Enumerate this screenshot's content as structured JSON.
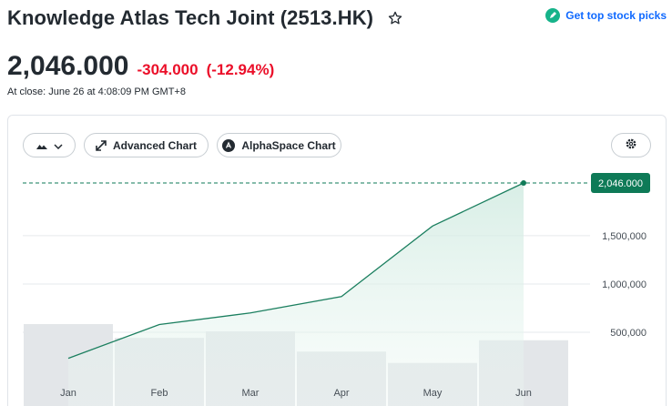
{
  "header": {
    "title": "Knowledge Atlas Tech Joint (2513.HK)",
    "top_picks_label": "Get top stock picks"
  },
  "quote": {
    "price": "2,046.000",
    "change": "-304.000",
    "change_pct": "(-12.94%)",
    "close_info": "At close: June 26 at 4:08:09 PM GMT+8"
  },
  "toolbar": {
    "advanced_chart_label": "Advanced Chart",
    "alphaspace_chart_label": "AlphaSpace Chart"
  },
  "colors": {
    "line": "#1b7f5f",
    "area": "#e3f3ee",
    "volume": "#e3e6e9",
    "negative": "#eb0f29",
    "price_tag": "#0e7a57"
  },
  "chart_data": {
    "type": "line",
    "categories": [
      "Jan",
      "Feb",
      "Mar",
      "Apr",
      "May",
      "Jun"
    ],
    "series": [
      {
        "values": [
          230000,
          580000,
          700000,
          870000,
          1600000,
          2046000
        ]
      }
    ],
    "current_price_label": "2,046.000",
    "current_price": 2046000,
    "y_ticks": [
      {
        "value": 500000,
        "label": "500,000"
      },
      {
        "value": 1000000,
        "label": "1,000,000"
      },
      {
        "value": 1500000,
        "label": "1,500,000"
      }
    ],
    "ylim": [
      0,
      2300000
    ],
    "volume_bars": [
      0.72,
      0.55,
      0.63,
      0.38,
      0.24,
      0.52
    ],
    "grid": true,
    "area_fill": true
  }
}
